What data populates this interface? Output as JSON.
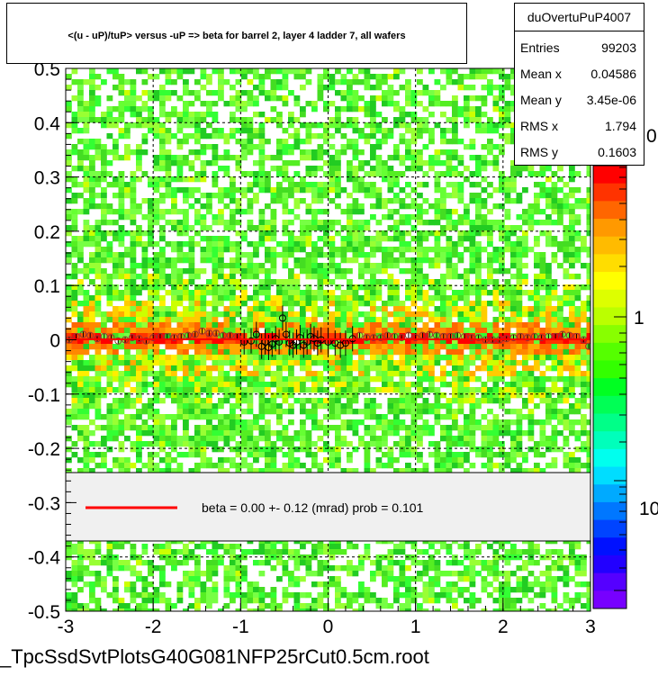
{
  "title": "<(u - uP)/tuP> versus  -uP => beta for barrel 2, layer 4 ladder 7, all wafers",
  "stats": {
    "name": "duOvertuPuP4007",
    "rows": [
      {
        "label": "Entries",
        "value": "99203"
      },
      {
        "label": "Mean x",
        "value": "0.04586"
      },
      {
        "label": "Mean y",
        "value": "3.45e-06"
      },
      {
        "label": "RMS x",
        "value": "1.794"
      },
      {
        "label": "RMS y",
        "value": "0.1603"
      }
    ]
  },
  "legend": {
    "text": "beta =     0.00 +-   0.12 (mrad) prob = 0.101",
    "line_color": "#ff0000"
  },
  "footer": "_TpcSsdSvtPlotsG40G081NFP25rCut0.5cm.root",
  "chart_data": {
    "type": "heatmap",
    "xlim": [
      -3,
      3
    ],
    "ylim": [
      -0.5,
      0.5
    ],
    "xticks": [
      "-3",
      "-2",
      "-1",
      "0",
      "1",
      "2",
      "3"
    ],
    "yticks": [
      "-0.5",
      "-0.4",
      "-0.3",
      "-0.2",
      "-0.1",
      "0",
      "0.1",
      "0.2",
      "0.3",
      "0.4",
      "0.5"
    ],
    "grid": true,
    "colorbar_labels": [
      "10",
      "1",
      "0"
    ],
    "fit": {
      "slope_mrad": 0.0,
      "error_mrad": 0.12,
      "prob": 0.101,
      "color": "#ff0000"
    },
    "profile_points": [
      [
        -2.96,
        0.0
      ],
      [
        -2.88,
        0.006
      ],
      [
        -2.8,
        0.01
      ],
      [
        -2.72,
        0.008
      ],
      [
        -2.64,
        0.002
      ],
      [
        -2.56,
        0.006
      ],
      [
        -2.48,
        0.004
      ],
      [
        -2.4,
        -0.002
      ],
      [
        -2.32,
        0.0
      ],
      [
        -2.24,
        0.004
      ],
      [
        -2.16,
        0.002
      ],
      [
        -2.08,
        -0.002
      ],
      [
        -2.0,
        0.004
      ],
      [
        -1.92,
        0.006
      ],
      [
        -1.84,
        0.006
      ],
      [
        -1.76,
        0.004
      ],
      [
        -1.68,
        0.006
      ],
      [
        -1.6,
        0.008
      ],
      [
        -1.52,
        0.01
      ],
      [
        -1.44,
        0.016
      ],
      [
        -1.36,
        0.012
      ],
      [
        -1.28,
        0.012
      ],
      [
        -1.2,
        0.008
      ],
      [
        -1.12,
        0.008
      ],
      [
        -1.04,
        0.006
      ],
      [
        -0.96,
        -0.004
      ],
      [
        -0.88,
        -0.002
      ],
      [
        -0.82,
        0.01
      ],
      [
        -0.76,
        -0.012
      ],
      [
        -0.72,
        -0.004
      ],
      [
        -0.68,
        -0.014
      ],
      [
        -0.64,
        -0.008
      ],
      [
        -0.6,
        0.002
      ],
      [
        -0.56,
        -0.004
      ],
      [
        -0.52,
        0.04
      ],
      [
        -0.48,
        0.01
      ],
      [
        -0.44,
        -0.006
      ],
      [
        -0.4,
        -0.01
      ],
      [
        -0.36,
        -0.004
      ],
      [
        -0.32,
        0.004
      ],
      [
        -0.28,
        -0.01
      ],
      [
        -0.24,
        -0.004
      ],
      [
        -0.2,
        0.006
      ],
      [
        -0.16,
        0.002
      ],
      [
        -0.12,
        -0.006
      ],
      [
        -0.08,
        0.0
      ],
      [
        0.0,
        -0.004
      ],
      [
        0.08,
        -0.006
      ],
      [
        0.14,
        -0.01
      ],
      [
        0.2,
        -0.006
      ],
      [
        0.28,
        0.002
      ],
      [
        0.36,
        0.008
      ],
      [
        0.44,
        0.004
      ],
      [
        0.52,
        0.004
      ],
      [
        0.6,
        0.004
      ],
      [
        0.68,
        0.008
      ],
      [
        0.76,
        0.006
      ],
      [
        0.84,
        0.004
      ],
      [
        0.92,
        0.008
      ],
      [
        1.0,
        0.004
      ],
      [
        1.08,
        0.008
      ],
      [
        1.16,
        0.01
      ],
      [
        1.24,
        0.008
      ],
      [
        1.32,
        0.006
      ],
      [
        1.4,
        0.006
      ],
      [
        1.48,
        0.008
      ],
      [
        1.56,
        0.006
      ],
      [
        1.64,
        0.004
      ],
      [
        1.72,
        0.004
      ],
      [
        1.8,
        0.0
      ],
      [
        1.88,
        0.0
      ],
      [
        1.96,
        0.0
      ],
      [
        2.04,
        0.002
      ],
      [
        2.12,
        0.004
      ],
      [
        2.2,
        0.006
      ],
      [
        2.28,
        0.004
      ],
      [
        2.36,
        0.006
      ],
      [
        2.44,
        0.004
      ],
      [
        2.52,
        0.006
      ],
      [
        2.6,
        0.006
      ],
      [
        2.68,
        0.01
      ],
      [
        2.76,
        0.008
      ],
      [
        2.84,
        0.006
      ],
      [
        2.92,
        0.0
      ],
      [
        2.98,
        -0.012
      ]
    ]
  }
}
